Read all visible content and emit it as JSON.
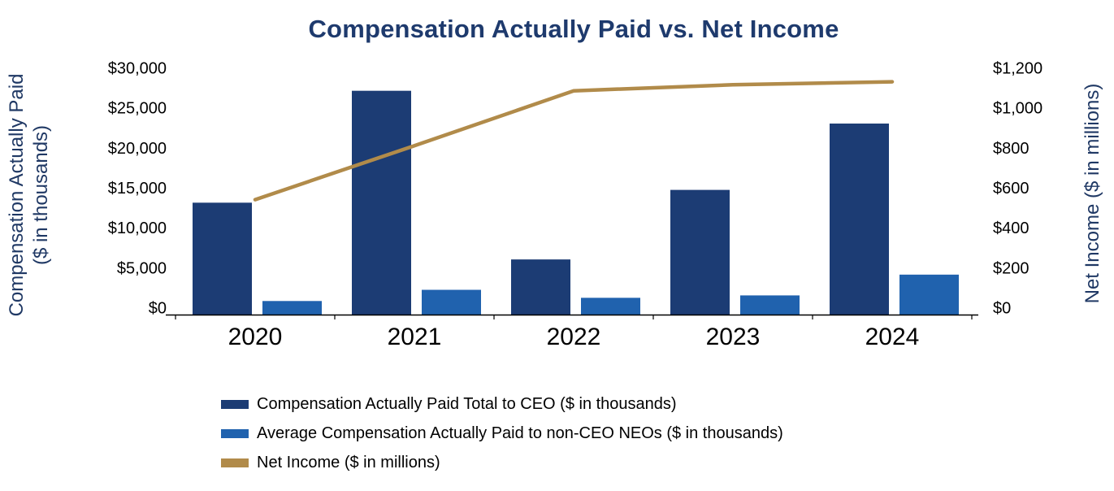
{
  "title": "Compensation Actually Paid vs. Net Income",
  "chart_data": {
    "type": "combo",
    "categories": [
      "2020",
      "2021",
      "2022",
      "2023",
      "2024"
    ],
    "series": [
      {
        "name": "Compensation Actually Paid Total to CEO ($ in thousands)",
        "type": "bar",
        "axis": "left",
        "color": "#1c3c74",
        "values": [
          14000,
          28000,
          6900,
          15600,
          23900
        ]
      },
      {
        "name": "Average Compensation Actually Paid to non-CEO NEOs ($ in thousands)",
        "type": "bar",
        "axis": "left",
        "color": "#2062ae",
        "values": [
          1700,
          3100,
          2100,
          2400,
          5000
        ]
      },
      {
        "name": "Net Income ($ in millions)",
        "type": "line",
        "axis": "right",
        "color": "#b18b4a",
        "values": [
          575,
          845,
          1120,
          1150,
          1165
        ]
      }
    ],
    "left_axis": {
      "title_line1": "Compensation Actually Paid",
      "title_line2": "($ in thousands)",
      "min": 0,
      "max": 30000,
      "step": 5000,
      "tick_labels": [
        "$0",
        "$5,000",
        "$10,000",
        "$15,000",
        "$20,000",
        "$25,000",
        "$30,000"
      ]
    },
    "right_axis": {
      "title": "Net Income ($ in millions)",
      "min": 0,
      "max": 1200,
      "step": 200,
      "tick_labels": [
        "$0",
        "$200",
        "$400",
        "$600",
        "$800",
        "$1,000",
        "$1,200"
      ]
    },
    "grid": false,
    "legend_position": "bottom-left"
  },
  "colors": {
    "title_text": "#1e3a6d",
    "axis_title_text": "#1f3864",
    "tick_label_text": "#000000",
    "axis_line": "#000000"
  }
}
